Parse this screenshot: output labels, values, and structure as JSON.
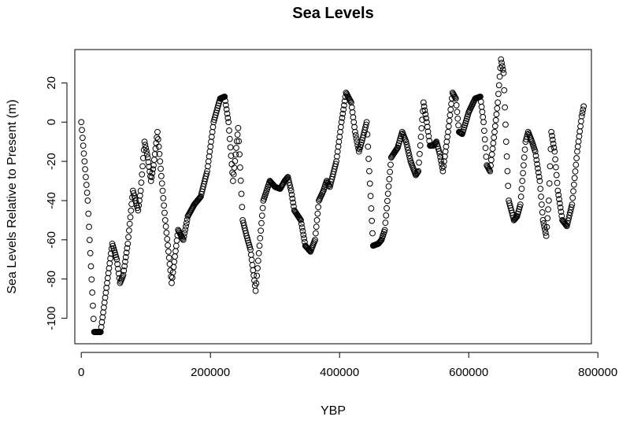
{
  "chart_data": {
    "type": "scatter",
    "title": "Sea Levels",
    "xlabel": "YBP",
    "ylabel": "Sea Levels Relative to Present (m)",
    "xlim": [
      -10000,
      790000
    ],
    "ylim": [
      -113,
      37
    ],
    "x_ticks": [
      0,
      200000,
      400000,
      600000,
      800000
    ],
    "x_tick_labels": [
      "0",
      "200000",
      "400000",
      "600000",
      "800000"
    ],
    "y_ticks": [
      -100,
      -80,
      -60,
      -40,
      -20,
      0,
      20
    ],
    "y_tick_labels": [
      "-100",
      "-80",
      "-60",
      "-40",
      "-20",
      "0",
      "20"
    ],
    "marker": "open-circle",
    "grid": false,
    "legend": "none",
    "point_spacing": 1000,
    "profile": [
      [
        0,
        0
      ],
      [
        10000,
        -40
      ],
      [
        20000,
        -107
      ],
      [
        30000,
        -107
      ],
      [
        40000,
        -82
      ],
      [
        48000,
        -62
      ],
      [
        55000,
        -70
      ],
      [
        60000,
        -82
      ],
      [
        65000,
        -78
      ],
      [
        72000,
        -62
      ],
      [
        80000,
        -35
      ],
      [
        88000,
        -45
      ],
      [
        92000,
        -35
      ],
      [
        98000,
        -10
      ],
      [
        103000,
        -18
      ],
      [
        108000,
        -30
      ],
      [
        112000,
        -22
      ],
      [
        118000,
        -5
      ],
      [
        130000,
        -50
      ],
      [
        140000,
        -82
      ],
      [
        150000,
        -55
      ],
      [
        158000,
        -60
      ],
      [
        165000,
        -48
      ],
      [
        175000,
        -42
      ],
      [
        185000,
        -38
      ],
      [
        195000,
        -25
      ],
      [
        205000,
        0
      ],
      [
        215000,
        12
      ],
      [
        222000,
        13
      ],
      [
        228000,
        0
      ],
      [
        235000,
        -30
      ],
      [
        243000,
        -3
      ],
      [
        250000,
        -50
      ],
      [
        256000,
        -58
      ],
      [
        262000,
        -65
      ],
      [
        270000,
        -86
      ],
      [
        282000,
        -40
      ],
      [
        292000,
        -30
      ],
      [
        300000,
        -33
      ],
      [
        308000,
        -34
      ],
      [
        315000,
        -30
      ],
      [
        320000,
        -28
      ],
      [
        325000,
        -35
      ],
      [
        330000,
        -45
      ],
      [
        340000,
        -50
      ],
      [
        347000,
        -63
      ],
      [
        355000,
        -66
      ],
      [
        362000,
        -60
      ],
      [
        368000,
        -40
      ],
      [
        375000,
        -35
      ],
      [
        380000,
        -30
      ],
      [
        385000,
        -33
      ],
      [
        395000,
        -20
      ],
      [
        403000,
        0
      ],
      [
        410000,
        15
      ],
      [
        418000,
        10
      ],
      [
        424000,
        -5
      ],
      [
        430000,
        -15
      ],
      [
        436000,
        -8
      ],
      [
        442000,
        0
      ],
      [
        446000,
        -25
      ],
      [
        452000,
        -63
      ],
      [
        460000,
        -62
      ],
      [
        465000,
        -60
      ],
      [
        470000,
        -55
      ],
      [
        480000,
        -18
      ],
      [
        490000,
        -13
      ],
      [
        497000,
        -5
      ],
      [
        503000,
        -10
      ],
      [
        510000,
        -20
      ],
      [
        518000,
        -27
      ],
      [
        522000,
        -25
      ],
      [
        530000,
        10
      ],
      [
        535000,
        0
      ],
      [
        540000,
        -12
      ],
      [
        545000,
        -12
      ],
      [
        550000,
        -10
      ],
      [
        555000,
        -16
      ],
      [
        560000,
        -25
      ],
      [
        568000,
        -5
      ],
      [
        575000,
        15
      ],
      [
        580000,
        12
      ],
      [
        585000,
        -5
      ],
      [
        590000,
        -6
      ],
      [
        600000,
        5
      ],
      [
        610000,
        12
      ],
      [
        618000,
        13
      ],
      [
        623000,
        0
      ],
      [
        628000,
        -22
      ],
      [
        633000,
        -25
      ],
      [
        640000,
        -5
      ],
      [
        645000,
        10
      ],
      [
        650000,
        32
      ],
      [
        654000,
        25
      ],
      [
        658000,
        -10
      ],
      [
        662000,
        -40
      ],
      [
        670000,
        -50
      ],
      [
        675000,
        -48
      ],
      [
        680000,
        -42
      ],
      [
        688000,
        -10
      ],
      [
        692000,
        -5
      ],
      [
        698000,
        -10
      ],
      [
        703000,
        -15
      ],
      [
        710000,
        -30
      ],
      [
        715000,
        -50
      ],
      [
        720000,
        -58
      ],
      [
        724000,
        -40
      ],
      [
        728000,
        -5
      ],
      [
        733000,
        -15
      ],
      [
        738000,
        -35
      ],
      [
        745000,
        -50
      ],
      [
        752000,
        -53
      ],
      [
        760000,
        -42
      ],
      [
        768000,
        -15
      ],
      [
        775000,
        3
      ],
      [
        778000,
        8
      ]
    ]
  }
}
